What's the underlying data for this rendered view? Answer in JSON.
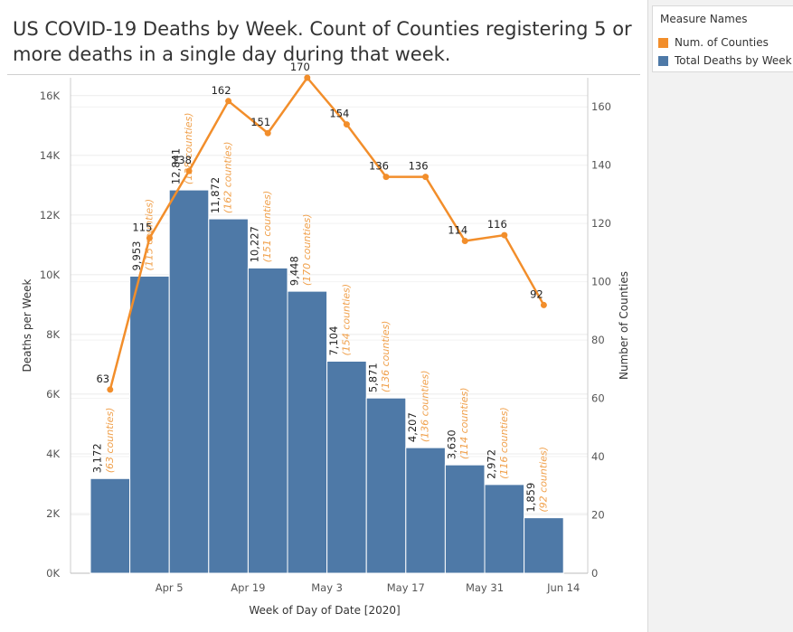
{
  "title": "US COVID-19 Deaths by Week. Count of Counties registering 5 or more deaths in a single day during that week.",
  "legend": {
    "title": "Measure Names",
    "items": [
      {
        "label": "Num. of Counties",
        "color": "#f28e2b"
      },
      {
        "label": "Total Deaths by Week",
        "color": "#4e79a7"
      }
    ]
  },
  "chart_data": {
    "type": "bar",
    "xlabel": "Week of Day of Date [2020]",
    "ylabel_left": "Deaths per Week",
    "ylabel_right": "Number of Counties",
    "ylim_left": [
      0,
      16600
    ],
    "ylim_right": [
      0,
      170
    ],
    "x_tick_labels": [
      "Apr 5",
      "Apr 19",
      "May 3",
      "May 17",
      "May 31",
      "Jun 14"
    ],
    "x_tick_weeks": [
      1,
      3,
      5,
      7,
      9,
      11
    ],
    "y_left_ticks": [
      {
        "value": 0,
        "label": "0K"
      },
      {
        "value": 2000,
        "label": "2K"
      },
      {
        "value": 4000,
        "label": "4K"
      },
      {
        "value": 6000,
        "label": "6K"
      },
      {
        "value": 8000,
        "label": "8K"
      },
      {
        "value": 10000,
        "label": "10K"
      },
      {
        "value": 12000,
        "label": "12K"
      },
      {
        "value": 14000,
        "label": "14K"
      },
      {
        "value": 16000,
        "label": "16K"
      }
    ],
    "y_right_ticks": [
      0,
      20,
      40,
      60,
      80,
      100,
      120,
      140,
      160
    ],
    "grid": true,
    "legend_position": "top-right",
    "series": [
      {
        "name": "Total Deaths by Week",
        "type": "bar",
        "color": "#4e79a7",
        "values": [
          3172,
          9953,
          12841,
          11872,
          10227,
          9448,
          7104,
          5871,
          4207,
          3630,
          2972,
          1859
        ],
        "labels": [
          "3,172",
          "9,953",
          "12,841",
          "11,872",
          "10,227",
          "9,448",
          "7,104",
          "5,871",
          "4,207",
          "3,630",
          "2,972",
          "1,859"
        ]
      },
      {
        "name": "Num. of Counties",
        "type": "line",
        "color": "#f28e2b",
        "values": [
          63,
          115,
          138,
          162,
          151,
          170,
          154,
          136,
          136,
          114,
          116,
          92
        ],
        "annotations": [
          "(63 counties)",
          "(115 counties)",
          "(138 counties)",
          "(162 counties)",
          "(151 counties)",
          "(170 counties)",
          "(154 counties)",
          "(136 counties)",
          "(136 counties)",
          "(114 counties)",
          "(116 counties)",
          "(92 counties)"
        ]
      }
    ]
  }
}
